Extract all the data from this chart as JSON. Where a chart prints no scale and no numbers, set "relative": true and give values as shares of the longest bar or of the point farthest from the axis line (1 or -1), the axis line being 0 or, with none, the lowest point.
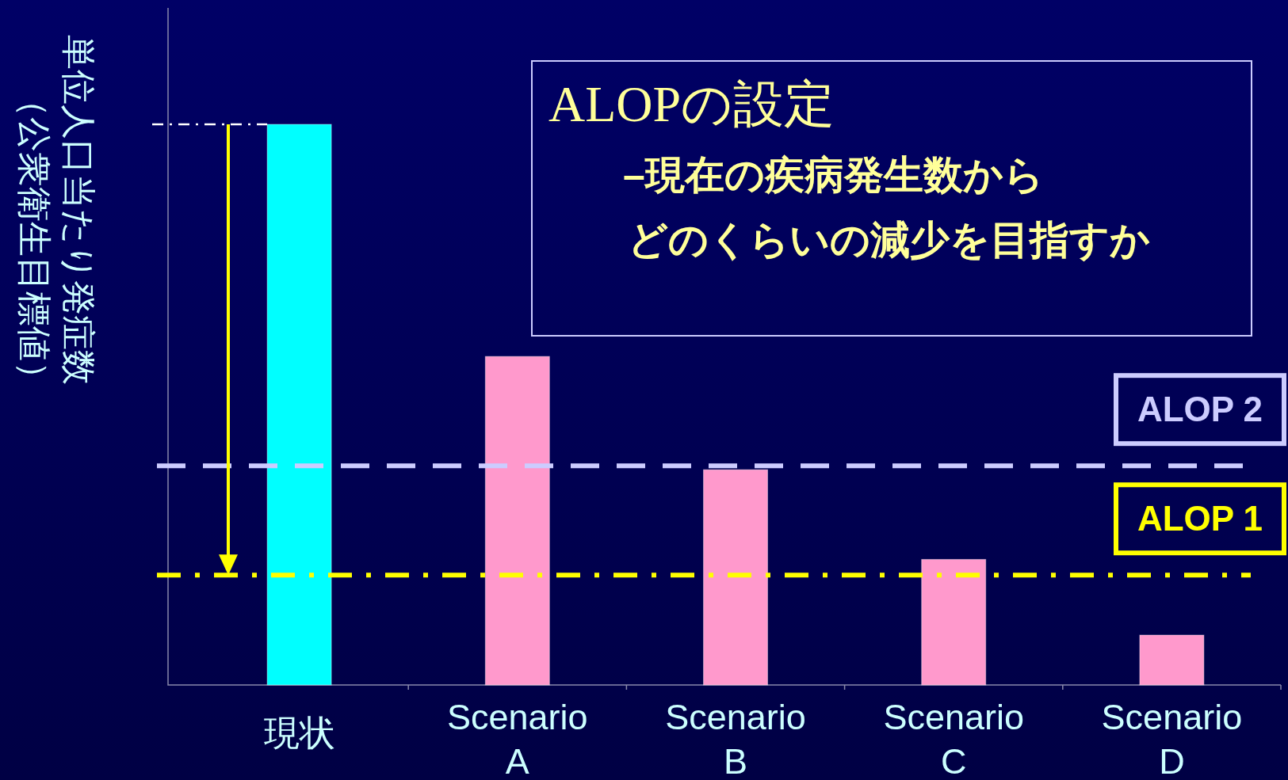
{
  "chart_data": {
    "type": "bar",
    "relative": true,
    "categories": [
      "現状",
      "Scenario\nA",
      "Scenario\nB",
      "Scenario\nC",
      "Scenario\nD"
    ],
    "values": [
      1,
      0.586,
      0.384,
      0.224,
      0.089
    ],
    "colors": [
      "#00ffff",
      "#ff99cc",
      "#ff99cc",
      "#ff99cc",
      "#ff99cc"
    ],
    "ylabel": "単位人口当たり発症数（公衆衛生目標値）",
    "annotations": [
      "ALOPの設定",
      "–現在の疾病発生数から",
      "どのくらいの減少を目指すか"
    ],
    "ref_lines": [
      {
        "axis": "y",
        "value": 0.391,
        "label": "ALOP 2",
        "color": "#ccccff",
        "line_style": "dashed"
      },
      {
        "axis": "y",
        "value": 0.196,
        "label": "ALOP 1",
        "color": "#ffff00",
        "line_style": "dashdot"
      }
    ]
  }
}
